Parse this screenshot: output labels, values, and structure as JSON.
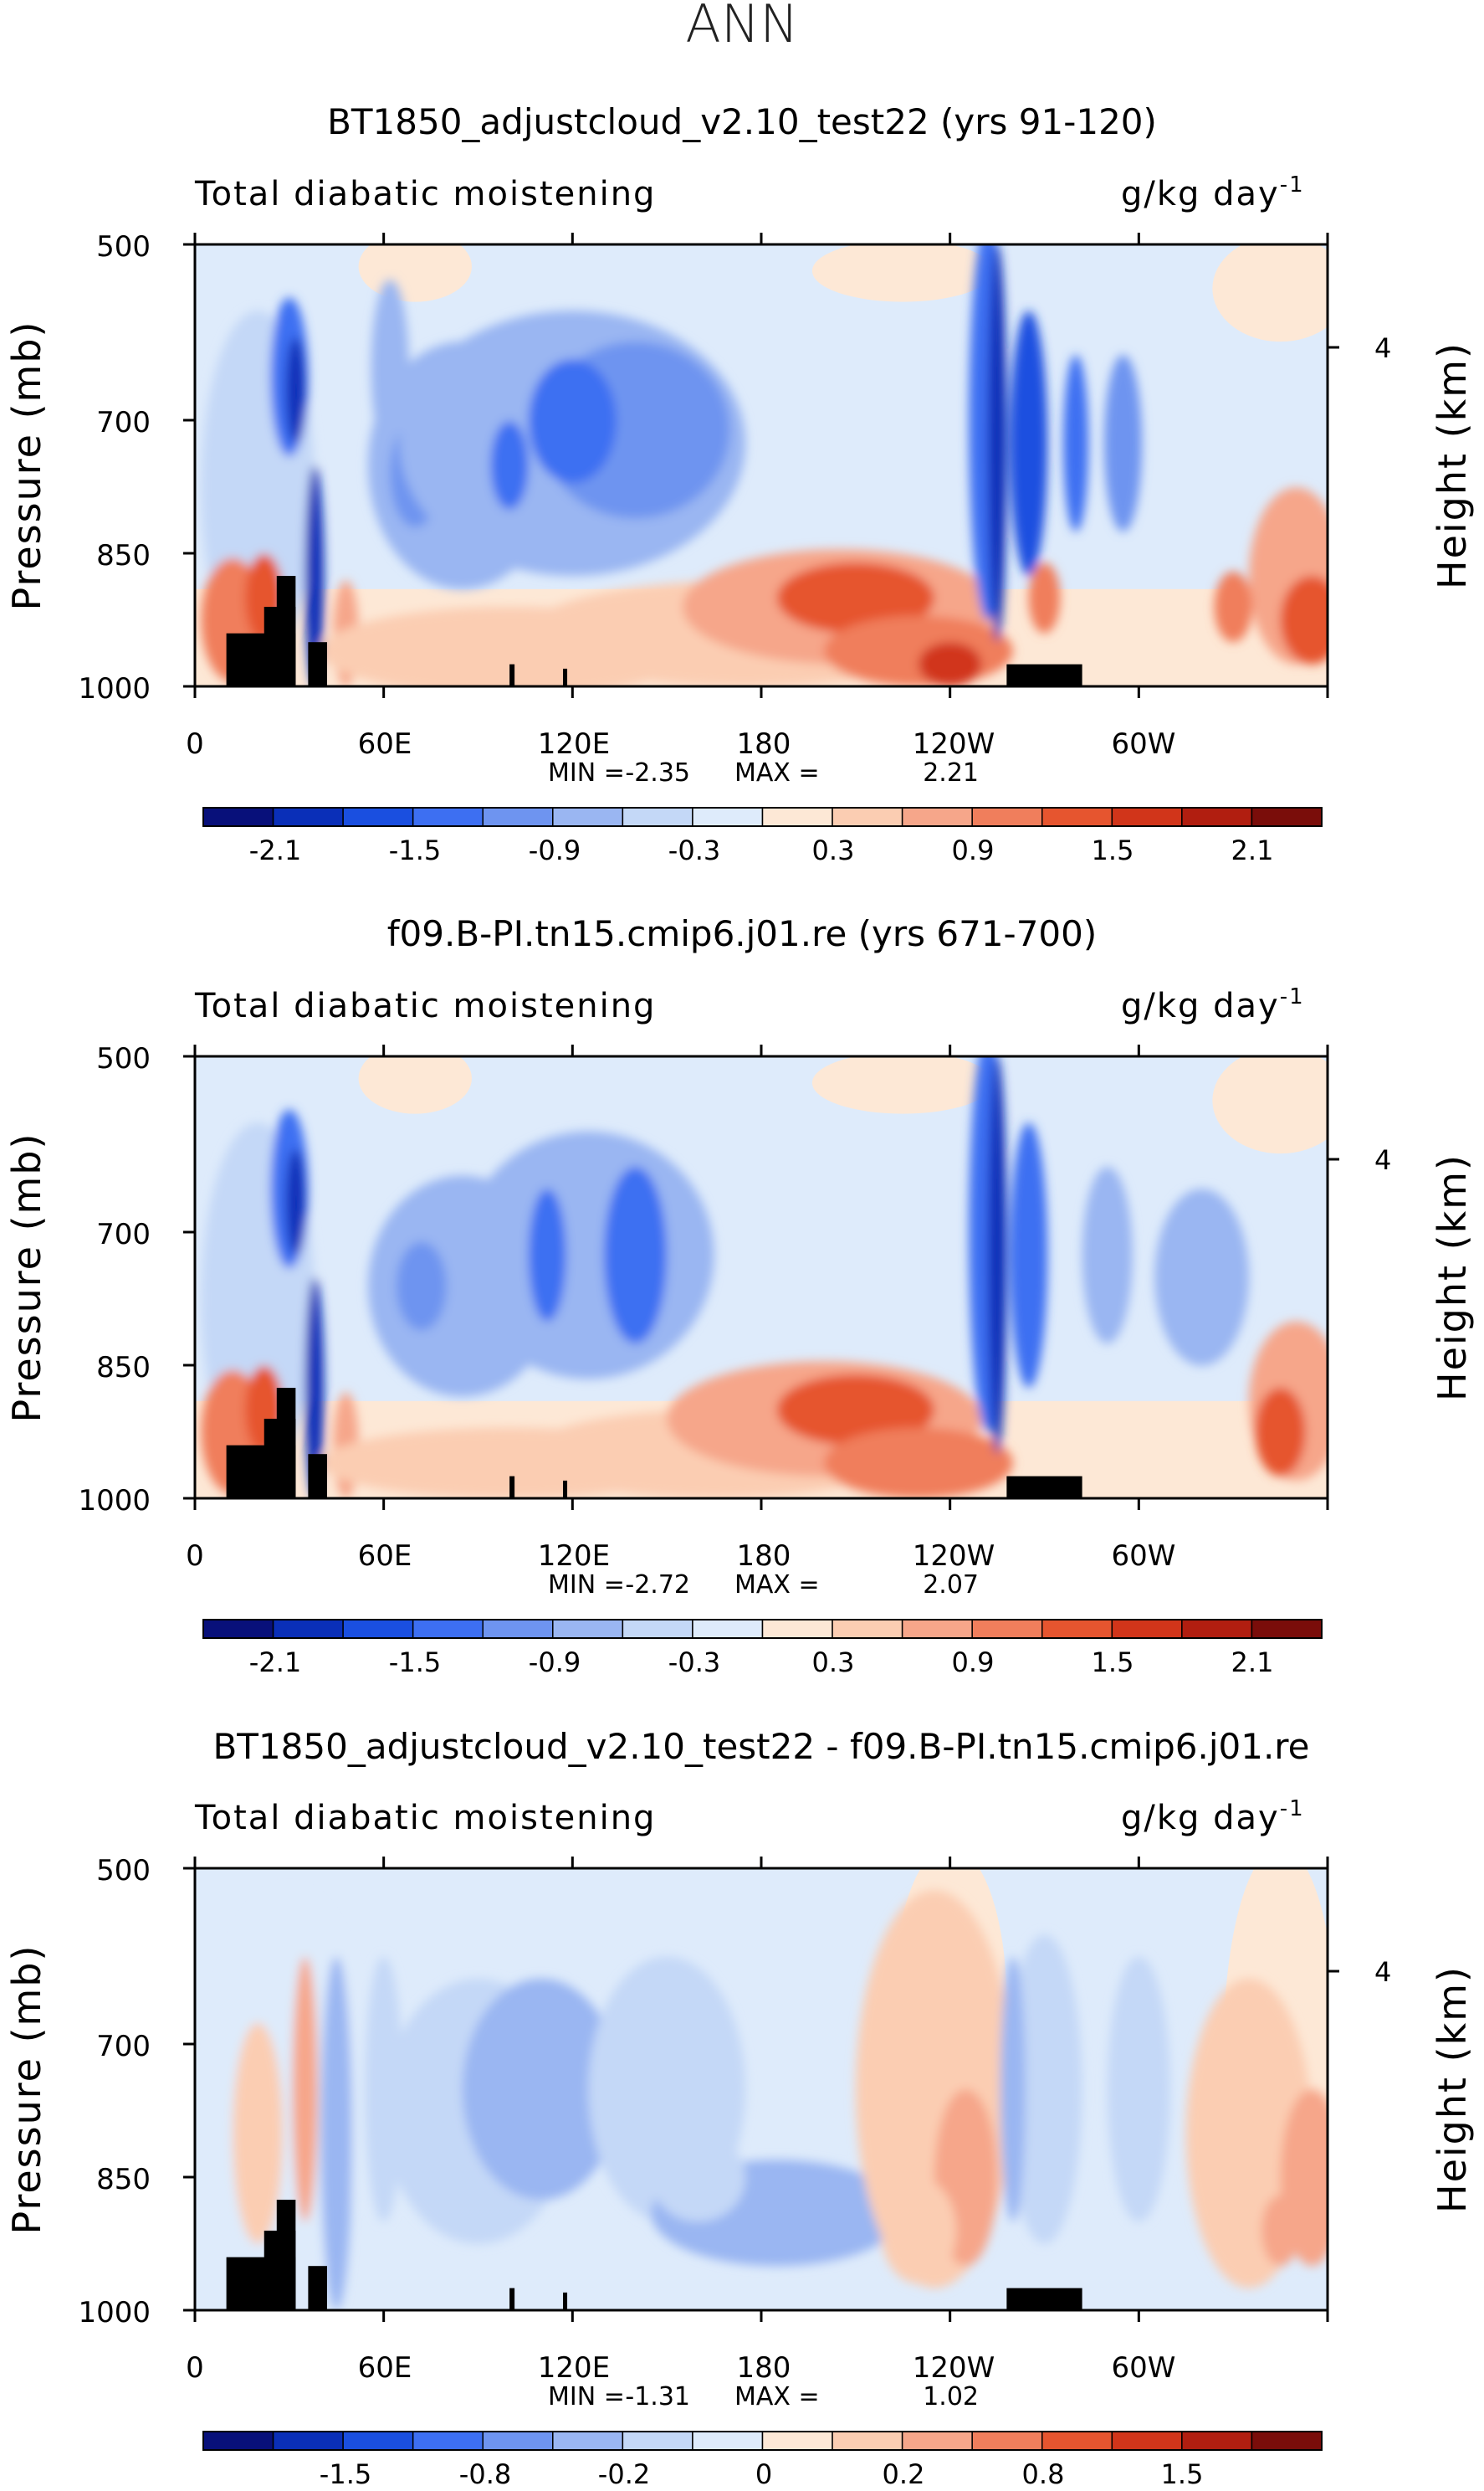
{
  "figure_title": "ANN",
  "chart_data": [
    {
      "type": "heatmap",
      "title": "BT1850_adjustcloud_v2.10_test22 (yrs 91-120)",
      "left_string": "Total diabatic moistening",
      "right_string": "g/kg day",
      "right_string_exp": "-1",
      "ylabel": "Pressure (mb)",
      "ylabel_right": "Height (km)",
      "yticks": [
        "500",
        "700",
        "850",
        "1000"
      ],
      "yticks_right": [
        "4"
      ],
      "xticks": [
        "0",
        "60E",
        "120E",
        "180",
        "120W",
        "60W"
      ],
      "min_label": "MIN =",
      "min_value": "-2.35",
      "max_label": "MAX =",
      "max_value": "2.21",
      "colorbar_labels": [
        "-2.1",
        "-1.5",
        "-0.9",
        "-0.3",
        "0.3",
        "0.9",
        "1.5",
        "2.1"
      ]
    },
    {
      "type": "heatmap",
      "title": "f09.B-PI.tn15.cmip6.j01.re (yrs 671-700)",
      "left_string": "Total diabatic moistening",
      "right_string": "g/kg day",
      "right_string_exp": "-1",
      "ylabel": "Pressure (mb)",
      "ylabel_right": "Height (km)",
      "yticks": [
        "500",
        "700",
        "850",
        "1000"
      ],
      "yticks_right": [
        "4"
      ],
      "xticks": [
        "0",
        "60E",
        "120E",
        "180",
        "120W",
        "60W"
      ],
      "min_label": "MIN =",
      "min_value": "-2.72",
      "max_label": "MAX =",
      "max_value": "2.07",
      "colorbar_labels": [
        "-2.1",
        "-1.5",
        "-0.9",
        "-0.3",
        "0.3",
        "0.9",
        "1.5",
        "2.1"
      ]
    },
    {
      "type": "heatmap",
      "title": "BT1850_adjustcloud_v2.10_test22 - f09.B-PI.tn15.cmip6.j01.re",
      "left_string": "Total diabatic moistening",
      "right_string": "g/kg day",
      "right_string_exp": "-1",
      "ylabel": "Pressure (mb)",
      "ylabel_right": "Height (km)",
      "yticks": [
        "500",
        "700",
        "850",
        "1000"
      ],
      "yticks_right": [
        "4"
      ],
      "xticks": [
        "0",
        "60E",
        "120E",
        "180",
        "120W",
        "60W"
      ],
      "min_label": "MIN =",
      "min_value": "-1.31",
      "max_label": "MAX =",
      "max_value": "1.02",
      "colorbar_labels": [
        "-1.5",
        "-0.8",
        "-0.2",
        "0",
        "0.2",
        "0.8",
        "1.5"
      ]
    }
  ],
  "palette": [
    "#08107a",
    "#0a2fb8",
    "#1a4fe0",
    "#3d6ff2",
    "#6e94f0",
    "#9ab6f2",
    "#c4d8f7",
    "#deebfb",
    "#fde8d6",
    "#fbcdb2",
    "#f6a68a",
    "#f07e5c",
    "#e6552f",
    "#d1351a",
    "#b11e10",
    "#7a0d0a"
  ]
}
